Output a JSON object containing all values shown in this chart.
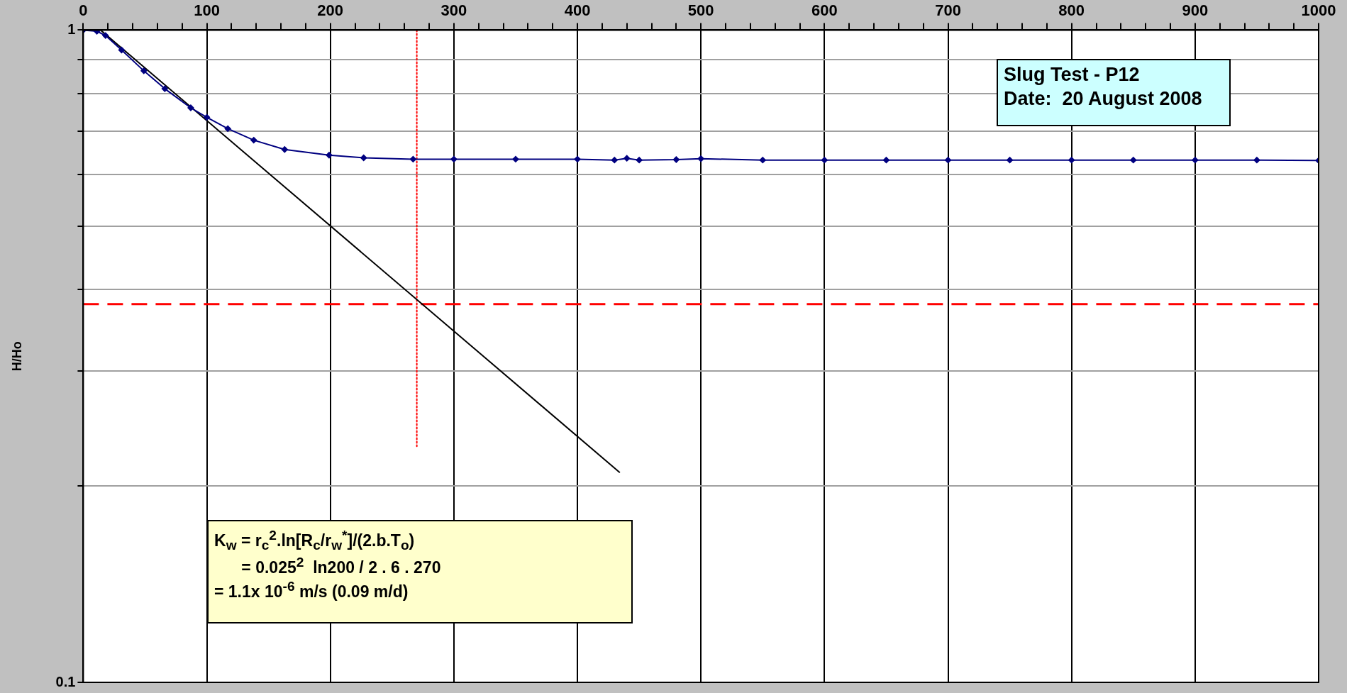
{
  "chart_data": {
    "type": "line",
    "ylabel": "H/Ho",
    "log": "y",
    "grid": true,
    "legend": false,
    "xlim": [
      0,
      1000
    ],
    "xticks": [
      0,
      {
        "value": 20,
        "label": null
      },
      {
        "value": 40,
        "label": null
      },
      {
        "value": 60,
        "label": null
      },
      {
        "value": 80,
        "label": null
      },
      100,
      {
        "value": 120,
        "label": null
      },
      {
        "value": 140,
        "label": null
      },
      {
        "value": 160,
        "label": null
      },
      {
        "value": 180,
        "label": null
      },
      200,
      {
        "value": 220,
        "label": null
      },
      {
        "value": 240,
        "label": null
      },
      {
        "value": 260,
        "label": null
      },
      {
        "value": 280,
        "label": null
      },
      300,
      {
        "value": 320,
        "label": null
      },
      {
        "value": 340,
        "label": null
      },
      {
        "value": 360,
        "label": null
      },
      {
        "value": 380,
        "label": null
      },
      400,
      {
        "value": 420,
        "label": null
      },
      {
        "value": 440,
        "label": null
      },
      {
        "value": 460,
        "label": null
      },
      {
        "value": 480,
        "label": null
      },
      500,
      {
        "value": 520,
        "label": null
      },
      {
        "value": 540,
        "label": null
      },
      {
        "value": 560,
        "label": null
      },
      {
        "value": 580,
        "label": null
      },
      600,
      {
        "value": 620,
        "label": null
      },
      {
        "value": 640,
        "label": null
      },
      {
        "value": 660,
        "label": null
      },
      {
        "value": 680,
        "label": null
      },
      700,
      {
        "value": 720,
        "label": null
      },
      {
        "value": 740,
        "label": null
      },
      {
        "value": 760,
        "label": null
      },
      {
        "value": 780,
        "label": null
      },
      800,
      {
        "value": 820,
        "label": null
      },
      {
        "value": 840,
        "label": null
      },
      {
        "value": 860,
        "label": null
      },
      {
        "value": 880,
        "label": null
      },
      900,
      {
        "value": 920,
        "label": null
      },
      {
        "value": 940,
        "label": null
      },
      {
        "value": 960,
        "label": null
      },
      {
        "value": 980,
        "label": null
      },
      1000
    ],
    "ylim": [
      0.1,
      1
    ],
    "yticks": [
      0.1,
      {
        "value": 0.2,
        "label": null
      },
      {
        "value": 0.3,
        "label": null
      },
      {
        "value": 0.4,
        "label": null
      },
      {
        "value": 0.5,
        "label": null
      },
      {
        "value": 0.6,
        "label": null
      },
      {
        "value": 0.7,
        "label": null
      },
      {
        "value": 0.8,
        "label": null
      },
      {
        "value": 0.9,
        "label": null
      },
      1
    ],
    "series": [
      {
        "color": "#000080",
        "marker": "diamond",
        "line_style": "solid",
        "x": [
          0,
          11,
          18,
          31,
          49,
          66,
          87,
          100,
          117,
          138,
          163,
          199,
          227,
          267,
          300,
          350,
          400,
          430,
          440,
          450,
          480,
          500,
          550,
          600,
          650,
          700,
          750,
          800,
          850,
          900,
          950,
          1000
        ],
        "values": [
          1,
          0.996,
          0.981,
          0.932,
          0.866,
          0.813,
          0.76,
          0.735,
          0.706,
          0.678,
          0.656,
          0.643,
          0.637,
          0.634,
          0.634,
          0.634,
          0.634,
          0.632,
          0.636,
          0.632,
          0.633,
          0.635,
          0.632,
          0.632,
          0.632,
          0.632,
          0.632,
          0.632,
          0.632,
          0.632,
          0.632,
          0.631
        ]
      },
      {
        "color": "#000000",
        "marker": "none",
        "line_style": "solid",
        "x": [
          14,
          434
        ],
        "values": [
          1,
          0.21
        ]
      },
      {
        "color": "#ff0000",
        "marker": "none",
        "line_style": "dotted",
        "x": [
          270,
          270
        ],
        "values": [
          1,
          0.23
        ]
      }
    ],
    "ref_lines": [
      {
        "axis": "y",
        "value": 0.38,
        "color": "#ff0000",
        "line_style": "dashed"
      }
    ],
    "annotations": [
      "Slug Test - P12\nDate:  20 August 2008",
      "K$_{w}$ = r$_{c}$$^{2}$.ln[R$_{c}$/r$_{w}$$^{*}$]/(2.b.T$_{o}$)\n      = 0.025$^{2}$  ln200 / 2 . 6 . 270\n= 1.1x 10$^{-6}$ m/s (0.09 m/d)"
    ]
  }
}
